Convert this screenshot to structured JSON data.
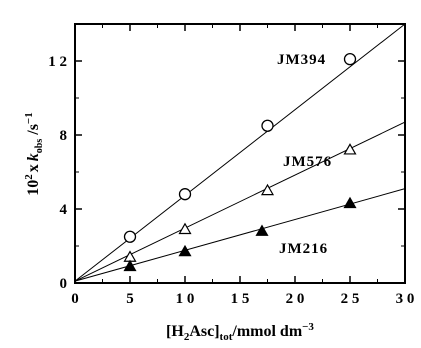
{
  "chart_data": {
    "type": "scatter",
    "title": "",
    "xlabel": {
      "pre": "[H",
      "sub1": "2",
      "mid": "Asc]",
      "sub2": "tot",
      "post": "/mmol dm",
      "sup": "−3"
    },
    "ylabel": {
      "pre": "10",
      "sup1": "2",
      "mid": "x",
      "k": "k",
      "sub": "obs",
      "post": " /s",
      "sup2": "−1"
    },
    "xlim": [
      0,
      30
    ],
    "ylim": [
      0,
      14
    ],
    "xticks": [
      0,
      5,
      10,
      15,
      20,
      25,
      30
    ],
    "xtick_labels": [
      "0",
      "5",
      "1 0",
      "1 5",
      "2 0",
      "2 5",
      "3 0"
    ],
    "yticks": [
      0,
      4,
      8,
      12
    ],
    "ytick_labels": [
      "0",
      "4",
      "8",
      "1 2"
    ],
    "grid": false,
    "series": [
      {
        "name": "JM394",
        "marker": "open-circle",
        "x": [
          5,
          10,
          17.5,
          25
        ],
        "y": [
          2.5,
          4.8,
          8.5,
          12.1
        ],
        "fit": [
          [
            0,
            0.1
          ],
          [
            30,
            14.0
          ]
        ]
      },
      {
        "name": "JM576",
        "marker": "open-triangle",
        "x": [
          5,
          10,
          17.5,
          25
        ],
        "y": [
          1.4,
          2.9,
          5.0,
          7.2
        ],
        "fit": [
          [
            0,
            0.1
          ],
          [
            30,
            8.7
          ]
        ]
      },
      {
        "name": "JM216",
        "marker": "filled-triangle",
        "x": [
          5,
          10,
          17,
          25
        ],
        "y": [
          0.9,
          1.7,
          2.8,
          4.3
        ],
        "fit": [
          [
            0,
            0.1
          ],
          [
            30,
            5.1
          ]
        ]
      }
    ]
  }
}
